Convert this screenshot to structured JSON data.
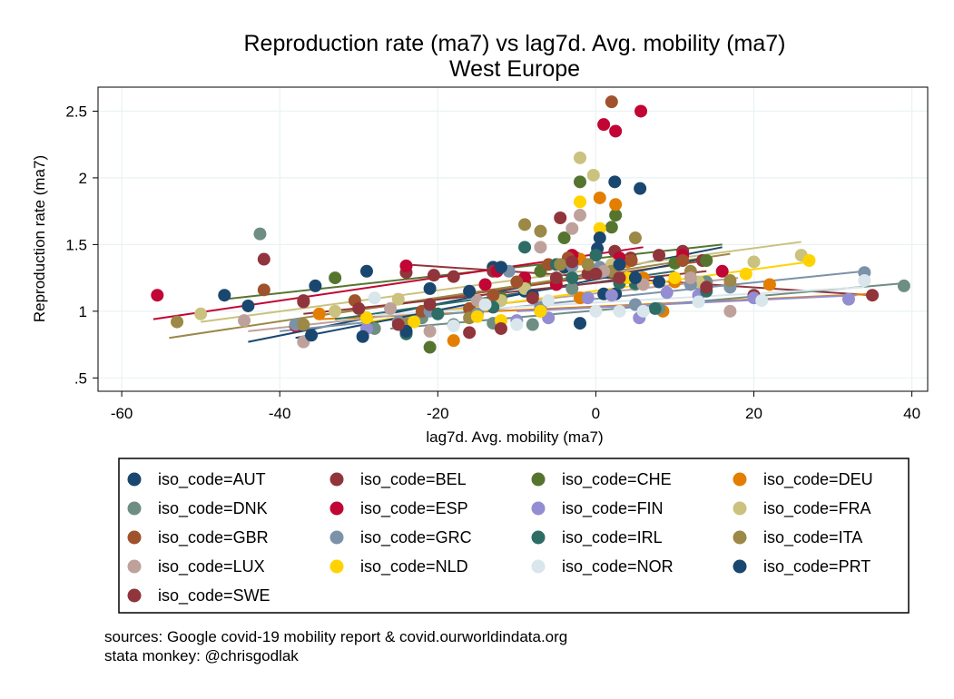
{
  "title": "Reproduction rate (ma7) vs lag7d. Avg. mobility (ma7)",
  "subtitle": "West Europe",
  "sources": [
    "sources: Google covid-19 mobility report & covid.ourworldindata.org",
    "stata monkey: @chrisgodlak"
  ],
  "chart_data": {
    "type": "scatter",
    "title": "Reproduction rate (ma7) vs lag7d. Avg. mobility (ma7)",
    "subtitle": "West Europe",
    "xlabel": "lag7d. Avg. mobility (ma7)",
    "ylabel": "Reproduction rate (ma7)",
    "xlim": [
      -63,
      42
    ],
    "ylim": [
      0.4,
      2.68
    ],
    "xticks": [
      -60,
      -40,
      -20,
      0,
      20,
      40
    ],
    "xtick_labels": [
      "-60",
      "-40",
      "-20",
      "0",
      "20",
      "40"
    ],
    "yticks": [
      0.5,
      1,
      1.5,
      2,
      2.5
    ],
    "ytick_labels": [
      ".5",
      "1",
      "1.5",
      "2",
      "2.5"
    ],
    "grid": true,
    "legend_position": "bottom",
    "series": [
      {
        "name": "iso_code=AUT",
        "color": "#1a476f",
        "points": [
          [
            -47,
            1.12
          ],
          [
            -44,
            1.04
          ],
          [
            -35.5,
            1.19
          ],
          [
            -29,
            1.3
          ],
          [
            -13,
            1.33
          ],
          [
            -9,
            1.15
          ],
          [
            -4,
            1.33
          ],
          [
            -2.5,
            1.4
          ],
          [
            0.2,
            1.47
          ],
          [
            2.4,
            1.97
          ],
          [
            5.6,
            1.92
          ],
          [
            1,
            1.13
          ],
          [
            2.5,
            1.13
          ]
        ],
        "fit": [
          [
            -44,
            0.77
          ],
          [
            16,
            1.48
          ]
        ]
      },
      {
        "name": "iso_code=BEL",
        "color": "#90353b",
        "points": [
          [
            -42,
            1.39
          ],
          [
            -37,
            1.07
          ],
          [
            -24,
            1.29
          ],
          [
            -20.5,
            1.27
          ],
          [
            -18,
            1.26
          ],
          [
            -13,
            1.3
          ],
          [
            -4.5,
            1.7
          ],
          [
            -3,
            1.4
          ],
          [
            -1,
            1.28
          ],
          [
            2.4,
            1.45
          ],
          [
            4.4,
            1.4
          ],
          [
            8,
            1.42
          ],
          [
            11,
            1.45
          ],
          [
            13.5,
            1.38
          ],
          [
            20,
            1.12
          ],
          [
            35,
            1.12
          ]
        ],
        "fit": [
          [
            -24,
            1.35
          ],
          [
            35,
            1.12
          ]
        ]
      },
      {
        "name": "iso_code=CHE",
        "color": "#55752f",
        "points": [
          [
            -33,
            1.25
          ],
          [
            -24,
            0.84
          ],
          [
            -21,
            0.73
          ],
          [
            -12,
            1.1
          ],
          [
            -9,
            1.21
          ],
          [
            -7,
            1.3
          ],
          [
            -4,
            1.55
          ],
          [
            -2,
            1.97
          ],
          [
            0.5,
            1.3
          ],
          [
            2.5,
            1.72
          ],
          [
            2,
            1.63
          ],
          [
            10,
            1.36
          ],
          [
            14,
            1.38
          ]
        ],
        "fit": [
          [
            -47,
            1.09
          ],
          [
            16,
            1.5
          ]
        ]
      },
      {
        "name": "iso_code=DEU",
        "color": "#e37e00",
        "points": [
          [
            -35,
            0.98
          ],
          [
            -18,
            0.78
          ],
          [
            -7,
            1.0
          ],
          [
            -2,
            1.39
          ],
          [
            -2,
            1.1
          ],
          [
            0.5,
            1.85
          ],
          [
            2.5,
            1.8
          ],
          [
            4,
            1.37
          ],
          [
            6,
            1.25
          ],
          [
            8.5,
            1.0
          ],
          [
            10,
            1.22
          ],
          [
            17,
            1.2
          ],
          [
            22,
            1.2
          ]
        ],
        "fit": [
          [
            -35,
            0.94
          ],
          [
            35,
            1.13
          ]
        ]
      },
      {
        "name": "iso_code=DNK",
        "color": "#6e8e84",
        "points": [
          [
            -42.5,
            1.58
          ],
          [
            -28,
            0.87
          ],
          [
            -22,
            0.95
          ],
          [
            -18,
            0.9
          ],
          [
            -13,
            0.91
          ],
          [
            -8,
            0.9
          ],
          [
            -3,
            1.17
          ],
          [
            0.5,
            1.29
          ],
          [
            5,
            1.2
          ],
          [
            8,
            1.02
          ],
          [
            14,
            1.22
          ],
          [
            39,
            1.19
          ]
        ],
        "fit": [
          [
            -26,
            0.87
          ],
          [
            39,
            1.21
          ]
        ]
      },
      {
        "name": "iso_code=ESP",
        "color": "#c10534",
        "points": [
          [
            -55.5,
            1.12
          ],
          [
            -38,
            0.89
          ],
          [
            -24,
            1.34
          ],
          [
            -14,
            1.2
          ],
          [
            -12.5,
            1.3
          ],
          [
            -9,
            1.25
          ],
          [
            -5,
            1.2
          ],
          [
            -3,
            1.42
          ],
          [
            1,
            2.4
          ],
          [
            2.5,
            2.35
          ],
          [
            5.7,
            2.5
          ],
          [
            3,
            1.4
          ],
          [
            11,
            1.42
          ],
          [
            16,
            1.3
          ]
        ],
        "fit": [
          [
            -56,
            0.94
          ],
          [
            6,
            1.48
          ]
        ]
      },
      {
        "name": "iso_code=FIN",
        "color": "#938dd2",
        "points": [
          [
            -29,
            0.87
          ],
          [
            -10,
            0.93
          ],
          [
            -6,
            0.95
          ],
          [
            -1,
            1.1
          ],
          [
            2,
            1.12
          ],
          [
            5.5,
            0.95
          ],
          [
            9,
            1.14
          ],
          [
            13,
            1.12
          ],
          [
            20,
            1.1
          ],
          [
            32,
            1.09
          ]
        ],
        "fit": [
          [
            -10,
            1.0
          ],
          [
            33,
            1.12
          ]
        ]
      },
      {
        "name": "iso_code=FRA",
        "color": "#cac27e",
        "points": [
          [
            -50,
            0.98
          ],
          [
            -33,
            1.0
          ],
          [
            -25,
            1.09
          ],
          [
            -12,
            1.08
          ],
          [
            -9,
            1.17
          ],
          [
            -2,
            2.15
          ],
          [
            -0.3,
            2.02
          ],
          [
            2,
            1.35
          ],
          [
            4,
            1.25
          ],
          [
            13,
            1.22
          ],
          [
            20,
            1.37
          ],
          [
            26,
            1.42
          ]
        ],
        "fit": [
          [
            -50,
            0.92
          ],
          [
            26,
            1.52
          ]
        ]
      },
      {
        "name": "iso_code=GBR",
        "color": "#a0522d",
        "points": [
          [
            -42,
            1.16
          ],
          [
            -30.5,
            1.08
          ],
          [
            -22,
            1.0
          ],
          [
            -16,
            1.02
          ],
          [
            -13,
            1.12
          ],
          [
            -10,
            1.22
          ],
          [
            -6,
            1.35
          ],
          [
            -3.5,
            1.4
          ],
          [
            2,
            2.57
          ],
          [
            4.5,
            1.38
          ],
          [
            11,
            1.38
          ]
        ],
        "fit": [
          [
            -36,
            0.96
          ],
          [
            14,
            1.38
          ]
        ]
      },
      {
        "name": "iso_code=GRC",
        "color": "#7b92a8",
        "points": [
          [
            -38,
            0.9
          ],
          [
            -25,
            0.92
          ],
          [
            -21,
            1.0
          ],
          [
            -15,
            0.98
          ],
          [
            -11,
            1.3
          ],
          [
            -7,
            1.03
          ],
          [
            -3,
            1.34
          ],
          [
            0.5,
            1.33
          ],
          [
            5,
            1.05
          ],
          [
            12,
            1.2
          ],
          [
            17,
            1.18
          ],
          [
            34,
            1.29
          ]
        ],
        "fit": [
          [
            -40,
            0.85
          ],
          [
            34,
            1.3
          ]
        ]
      },
      {
        "name": "iso_code=IRL",
        "color": "#2d6d66",
        "points": [
          [
            -29,
            0.95
          ],
          [
            -24,
            0.83
          ],
          [
            -20,
            0.98
          ],
          [
            -13,
            1.03
          ],
          [
            -9,
            1.48
          ],
          [
            -5,
            1.35
          ],
          [
            -3,
            1.25
          ],
          [
            0,
            1.42
          ],
          [
            3,
            1.21
          ],
          [
            5,
            1.21
          ],
          [
            7.5,
            1.02
          ],
          [
            14,
            1.15
          ]
        ],
        "fit": [
          [
            -33,
            0.94
          ],
          [
            10,
            1.3
          ]
        ]
      },
      {
        "name": "iso_code=ITA",
        "color": "#9c8847",
        "points": [
          [
            -53,
            0.92
          ],
          [
            -37,
            0.9
          ],
          [
            -24,
            0.9
          ],
          [
            -16,
            0.95
          ],
          [
            -9,
            1.65
          ],
          [
            -7,
            1.6
          ],
          [
            -4.5,
            1.35
          ],
          [
            -1,
            1.35
          ],
          [
            2,
            1.3
          ],
          [
            5,
            1.55
          ],
          [
            12,
            1.3
          ],
          [
            17,
            1.23
          ]
        ],
        "fit": [
          [
            -54,
            0.8
          ],
          [
            17,
            1.43
          ]
        ]
      },
      {
        "name": "iso_code=LUX",
        "color": "#bfa19c",
        "points": [
          [
            -44.5,
            0.93
          ],
          [
            -37,
            0.77
          ],
          [
            -26,
            1.02
          ],
          [
            -21,
            0.85
          ],
          [
            -15,
            1.08
          ],
          [
            -7,
            1.48
          ],
          [
            -3,
            1.62
          ],
          [
            -2,
            1.72
          ],
          [
            1,
            1.3
          ],
          [
            6,
            1.2
          ],
          [
            12,
            1.25
          ],
          [
            17,
            1.0
          ]
        ],
        "fit": [
          [
            -44,
            0.85
          ],
          [
            18,
            1.25
          ]
        ]
      },
      {
        "name": "iso_code=NLD",
        "color": "#ffd200",
        "points": [
          [
            -29,
            0.95
          ],
          [
            -23,
            0.92
          ],
          [
            -15,
            0.96
          ],
          [
            -12,
            0.93
          ],
          [
            -7,
            1.0
          ],
          [
            -2,
            1.82
          ],
          [
            0.5,
            1.62
          ],
          [
            4,
            1.25
          ],
          [
            10,
            1.25
          ],
          [
            19,
            1.28
          ],
          [
            27,
            1.38
          ]
        ],
        "fit": [
          [
            -29,
            0.92
          ],
          [
            27,
            1.37
          ]
        ]
      },
      {
        "name": "iso_code=NOR",
        "color": "#d9e6eb",
        "points": [
          [
            -28,
            1.1
          ],
          [
            -18,
            0.89
          ],
          [
            -14,
            1.05
          ],
          [
            -10,
            0.9
          ],
          [
            -6,
            1.08
          ],
          [
            0,
            1.0
          ],
          [
            3,
            1.0
          ],
          [
            6,
            1.0
          ],
          [
            13,
            1.07
          ],
          [
            21,
            1.08
          ],
          [
            34,
            1.23
          ]
        ],
        "fit": [
          [
            -28,
            0.97
          ],
          [
            34,
            1.18
          ]
        ]
      },
      {
        "name": "iso_code=PRT",
        "color": "#1a476f",
        "points": [
          [
            -36,
            0.82
          ],
          [
            -29.5,
            0.81
          ],
          [
            -24,
            0.85
          ],
          [
            -21,
            1.17
          ],
          [
            -16,
            1.15
          ],
          [
            -12,
            1.33
          ],
          [
            -8,
            1.12
          ],
          [
            -2,
            0.91
          ],
          [
            0.5,
            1.55
          ],
          [
            3,
            1.35
          ],
          [
            5,
            1.25
          ],
          [
            8,
            1.22
          ]
        ],
        "fit": [
          [
            -38,
            0.8
          ],
          [
            14,
            1.4
          ]
        ]
      },
      {
        "name": "iso_code=SWE",
        "color": "#90353b",
        "points": [
          [
            -37,
            1.08
          ],
          [
            -30,
            1.02
          ],
          [
            -25,
            0.9
          ],
          [
            -21,
            1.05
          ],
          [
            -16,
            0.84
          ],
          [
            -12,
            0.87
          ],
          [
            -8,
            1.1
          ],
          [
            -5,
            1.25
          ],
          [
            -3,
            1.37
          ],
          [
            0,
            1.28
          ],
          [
            3,
            1.25
          ],
          [
            14,
            1.18
          ]
        ],
        "fit": [
          [
            -37,
            0.98
          ],
          [
            14,
            1.3
          ]
        ]
      }
    ]
  }
}
